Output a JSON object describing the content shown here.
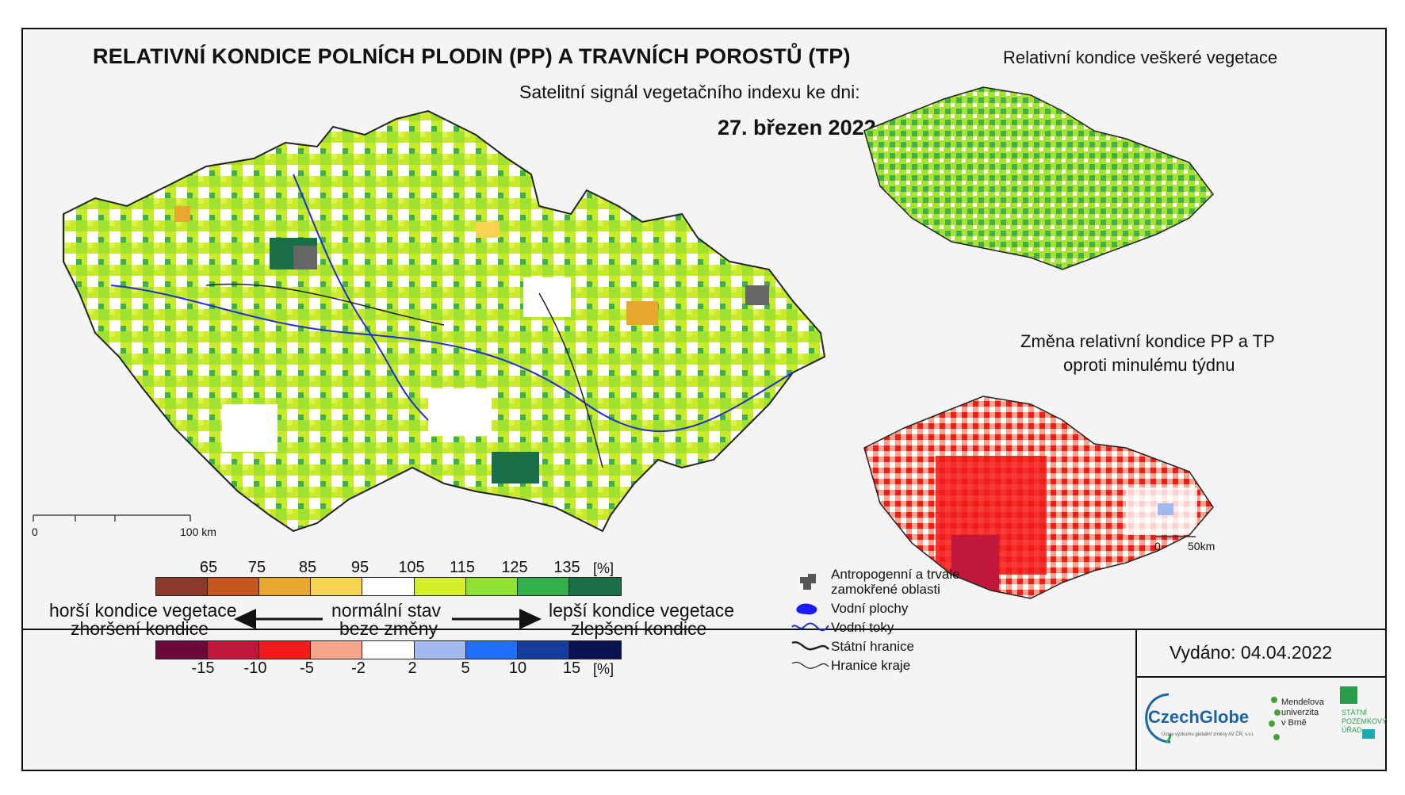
{
  "main": {
    "title": "RELATIVNÍ KONDICE POLNÍCH PLODIN (PP) A TRAVNÍCH POROSTŮ (TP)",
    "subtitle": "Satelitní signál vegetačního indexu ke dni:",
    "date": "27. březen 2022",
    "scale": {
      "zero": "0",
      "end": "100 km"
    }
  },
  "inset_top": {
    "title": "Relativní kondice veškeré vegetace"
  },
  "inset_bottom": {
    "title_line1": "Změna relativní kondice PP a TP",
    "title_line2": "oproti minulému týdnu",
    "scale": {
      "zero": "0",
      "end": "50km"
    }
  },
  "colorbar_top": {
    "ticks": [
      "65",
      "75",
      "85",
      "95",
      "105",
      "115",
      "125",
      "135"
    ],
    "unit": "[%]",
    "colors": [
      "#8c3b2a",
      "#c2561e",
      "#e5a82c",
      "#f6d452",
      "#ffffff",
      "#d5ef2a",
      "#8fe030",
      "#34b04a",
      "#1a6f47"
    ]
  },
  "colorbar_bottom": {
    "ticks": [
      "-15",
      "-10",
      "-5",
      "-2",
      "2",
      "5",
      "10",
      "15"
    ],
    "unit": "[%]",
    "colors": [
      "#6b0a3a",
      "#c0173a",
      "#f21a1a",
      "#f7a48c",
      "#ffffff",
      "#a3b8ef",
      "#1f6fff",
      "#163c9e",
      "#0b1350"
    ]
  },
  "legend_text": {
    "worse_line1": "horší kondice vegetace",
    "worse_line2": "zhoršení kondice",
    "normal_line1": "normální stav",
    "normal_line2": "beze změny",
    "better_line1": "lepší kondice vegetace",
    "better_line2": "zlepšení kondice"
  },
  "map_legend": [
    {
      "icon": "urban-area-icon",
      "label_line1": "Antropogenní a trvale",
      "label_line2": "zamokřené oblasti"
    },
    {
      "icon": "water-body-icon",
      "label_line1": "Vodní plochy"
    },
    {
      "icon": "river-icon",
      "label_line1": "Vodní toky"
    },
    {
      "icon": "state-border-icon",
      "label_line1": "Státní hranice"
    },
    {
      "icon": "region-border-icon",
      "label_line1": "Hranice kraje"
    }
  ],
  "issued": "Vydáno: 04.04.2022",
  "logos": {
    "czechglobe": "CzechGlobe",
    "czechglobe_sub": "Ústav výzkumu globální změny AV ČR, v.v.i.",
    "mendel_line1": "Mendelova",
    "mendel_line2": "univerzita",
    "mendel_line3": "v Brně",
    "spu_line1": "STÁTNÍ",
    "spu_line2": "POZEMKOVÝ",
    "spu_line3": "ÚŘAD"
  }
}
